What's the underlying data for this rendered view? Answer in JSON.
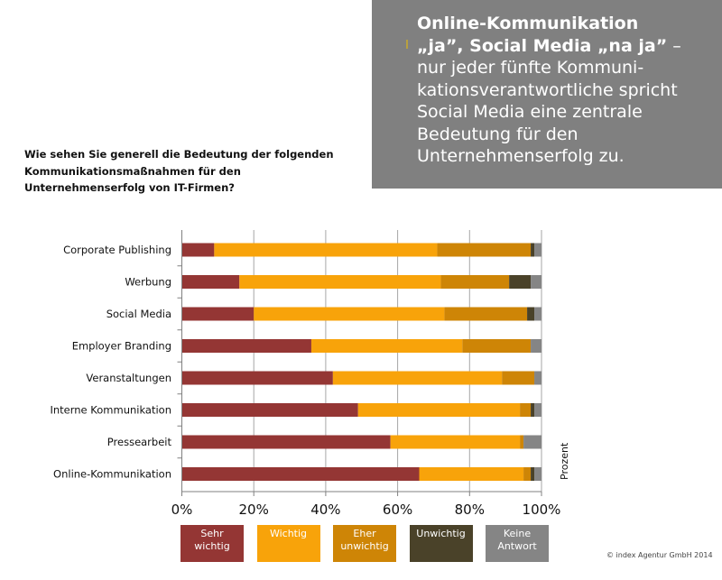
{
  "callout": {
    "headline_line1": "Online-Kommunikation",
    "headline_line2": "„ja”, Social Media „na ja”",
    "dash": " –",
    "body": "nur jeder fünfte Kommuni-kationsverantwortliche spricht Social Media eine zentrale Bedeutung für den Unternehmenserfolg zu.",
    "body_lines": [
      "nur jeder fünfte Kommuni-",
      "kationsverantwortliche spricht",
      "Social Media eine zentrale",
      "Bedeutung für den",
      "Unternehmenserfolg zu."
    ],
    "background": "#808080"
  },
  "question": "Wie sehen Sie generell die Bedeutung der folgenden Kommunikationsmaßnahmen für den Unternehmenserfolg von IT-Firmen?",
  "footer": "© index Agentur GmbH 2014",
  "chart_data": {
    "type": "bar",
    "orientation": "horizontal",
    "stacked": "percent",
    "title": "Wie sehen Sie generell die Bedeutung der folgenden Kommunikationsmaßnahmen für den Unternehmenserfolg von IT-Firmen?",
    "xlabel": "",
    "ylabel": "Prozent",
    "xlim": [
      0,
      100
    ],
    "grid": true,
    "legend_position": "bottom",
    "x_ticks": [
      "0%",
      "20%",
      "40%",
      "60%",
      "80%",
      "100%"
    ],
    "categories": [
      "Corporate Publishing",
      "Werbung",
      "Social Media",
      "Employer Branding",
      "Veranstaltungen",
      "Interne Kommunikation",
      "Pressearbeit",
      "Online-Kommunikation"
    ],
    "series": [
      {
        "name": "Sehr wichtig",
        "label_lines": [
          "Sehr",
          "wichtig"
        ],
        "color": "#943634",
        "values": [
          9,
          16,
          20,
          36,
          42,
          49,
          58,
          66
        ]
      },
      {
        "name": "Wichtig",
        "label_lines": [
          "Wichtig"
        ],
        "color": "#f8a30a",
        "values": [
          62,
          56,
          53,
          42,
          47,
          45,
          36,
          29
        ]
      },
      {
        "name": "Eher unwichtig",
        "label_lines": [
          "Eher",
          "unwichtig"
        ],
        "color": "#ce8506",
        "values": [
          26,
          19,
          23,
          19,
          9,
          3,
          1,
          2
        ]
      },
      {
        "name": "Unwichtig",
        "label_lines": [
          "Unwichtig"
        ],
        "color": "#4a4229",
        "values": [
          1,
          6,
          2,
          0,
          0,
          1,
          0,
          1
        ]
      },
      {
        "name": "Keine Antwort",
        "label_lines": [
          "Keine",
          "Antwort"
        ],
        "color": "#858585",
        "values": [
          2,
          3,
          2,
          3,
          2,
          2,
          5,
          2
        ]
      }
    ]
  }
}
